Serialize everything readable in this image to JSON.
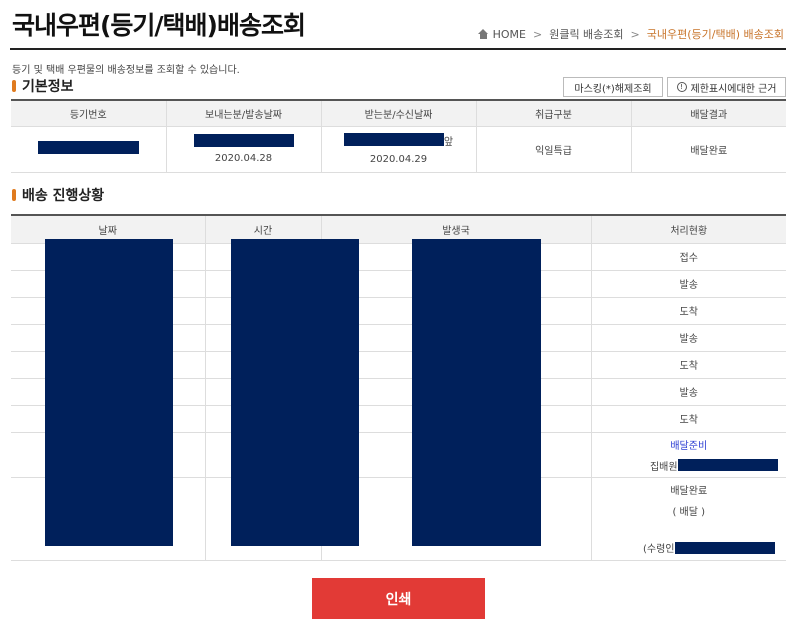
{
  "header": {
    "title": "국내우편(등기/택배)배송조회",
    "breadcrumb": [
      "HOME",
      "원클릭 배송조회",
      "국내우편(등기/택배) 배송조회"
    ]
  },
  "description": "등기 및 택배 우편물의 배송정보를 조회할 수 있습니다.",
  "basic_info": {
    "section_title": "기본정보",
    "mask_button": "마스킹(*)해제조회",
    "limit_button": "제한표시에대한 근거",
    "columns": [
      "등기번호",
      "보내는분/발송날짜",
      "받는분/수신날짜",
      "취급구분",
      "배달결과"
    ],
    "row": {
      "send_date": "2020.04.28",
      "receiver_suffix": "앞",
      "recv_date": "2020.04.29",
      "handling": "익일특급",
      "result": "배달완료"
    }
  },
  "progress": {
    "section_title": "배송 진행상황",
    "columns": [
      "날짜",
      "시간",
      "발생국",
      "처리현황"
    ],
    "statuses": [
      "접수",
      "발송",
      "도착",
      "발송",
      "도착",
      "발송",
      "도착"
    ],
    "ready_label": "배달준비",
    "courier_prefix": "집배원",
    "complete_label": "배달완료",
    "complete_sub": "( 배달 )",
    "receiver_prefix": "(수령인"
  },
  "print_button": "인쇄",
  "colors": {
    "accent": "#e07b1f",
    "redaction": "#00205b",
    "print": "#e23a36",
    "blue": "#2d3fd3"
  }
}
